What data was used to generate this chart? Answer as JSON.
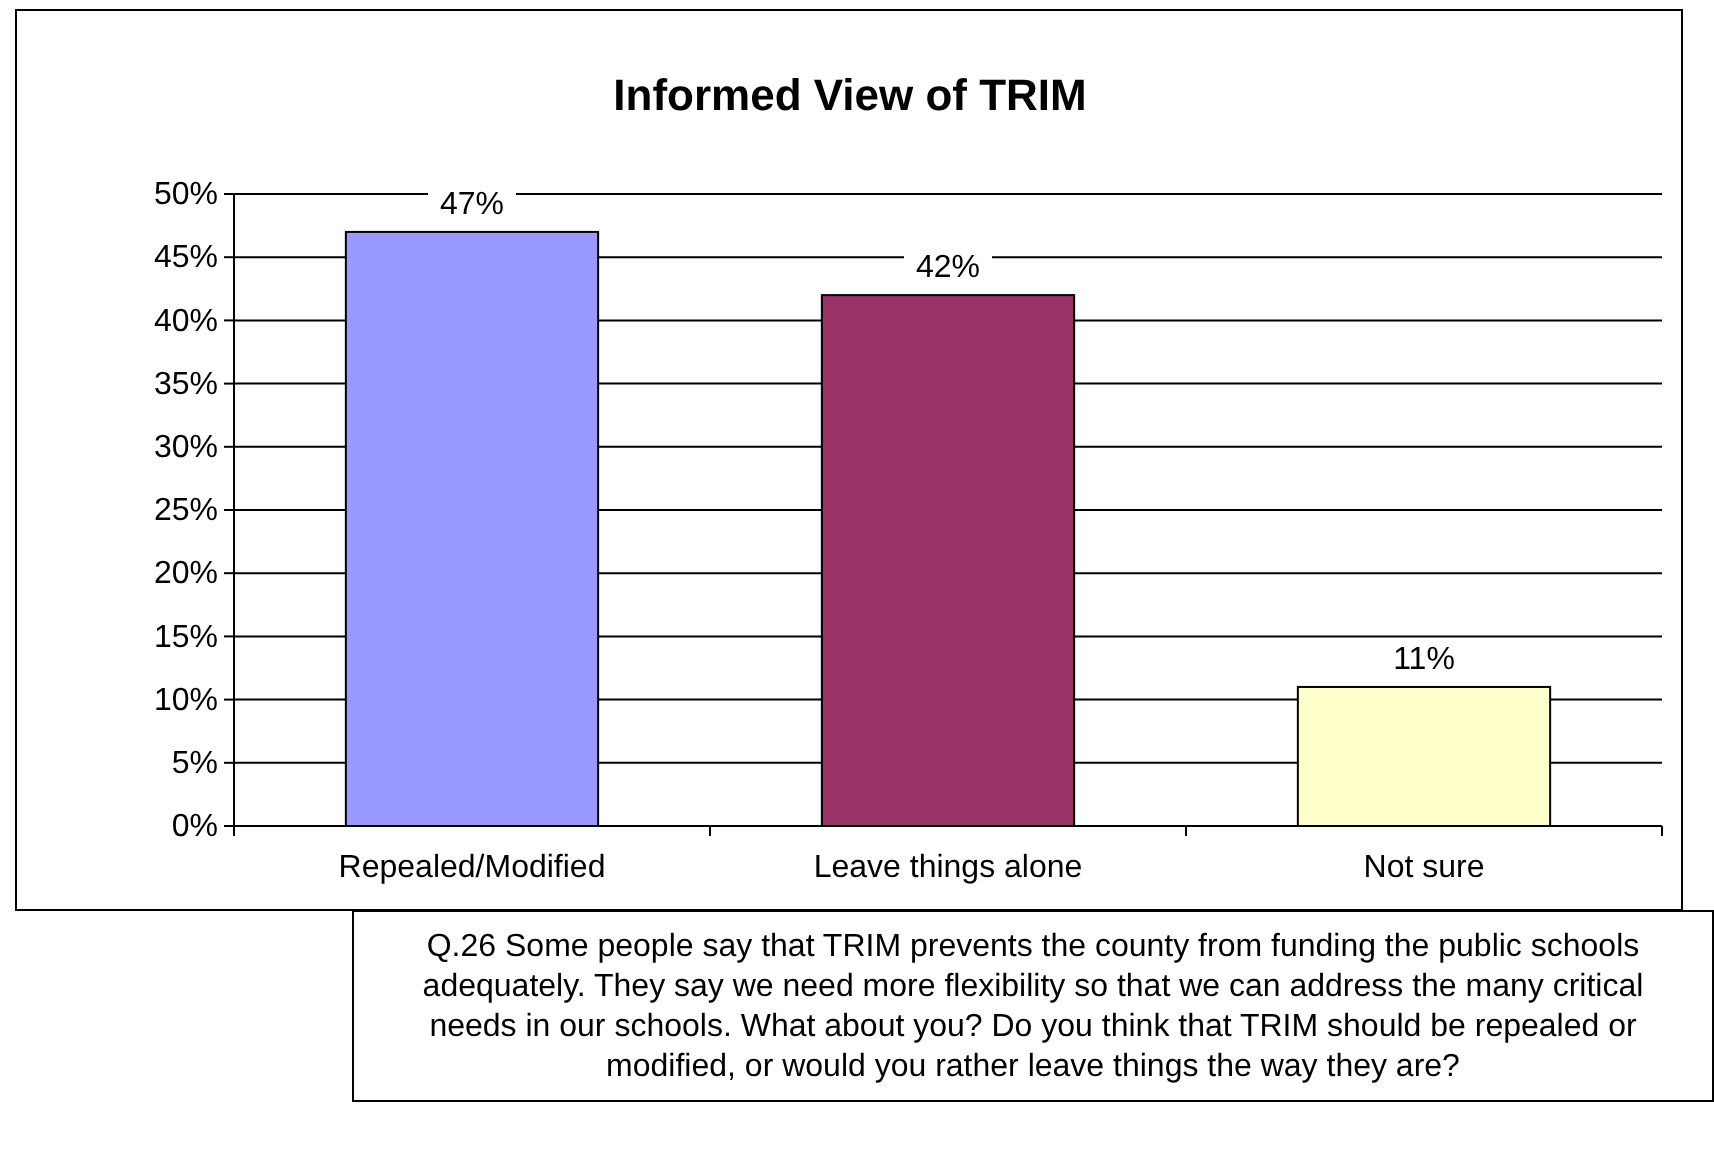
{
  "chart_data": {
    "type": "bar",
    "title": "Informed View of TRIM",
    "categories": [
      "Repealed/Modified",
      "Leave things alone",
      "Not sure"
    ],
    "values": [
      47,
      42,
      11
    ],
    "colors": [
      "#9999ff",
      "#993366",
      "#ffffcc"
    ],
    "value_labels": [
      "47%",
      "42%",
      "11%"
    ],
    "ylim": [
      0,
      50
    ],
    "yticks": [
      {
        "value": 0,
        "label": "0%"
      },
      {
        "value": 5,
        "label": "5%"
      },
      {
        "value": 10,
        "label": "10%"
      },
      {
        "value": 15,
        "label": "15%"
      },
      {
        "value": 20,
        "label": "20%"
      },
      {
        "value": 25,
        "label": "25%"
      },
      {
        "value": 30,
        "label": "30%"
      },
      {
        "value": 35,
        "label": "35%"
      },
      {
        "value": 40,
        "label": "40%"
      },
      {
        "value": 45,
        "label": "45%"
      },
      {
        "value": 50,
        "label": "50%"
      }
    ],
    "grid": "y",
    "annotations": [
      "Q.26 Some people say that TRIM prevents the county from funding the public schools adequately. They say we need more flexibility so that we can address the many critical needs in our schools. What about you? Do you think that TRIM should be repealed or modified, or would you rather leave things the way they are?"
    ]
  }
}
